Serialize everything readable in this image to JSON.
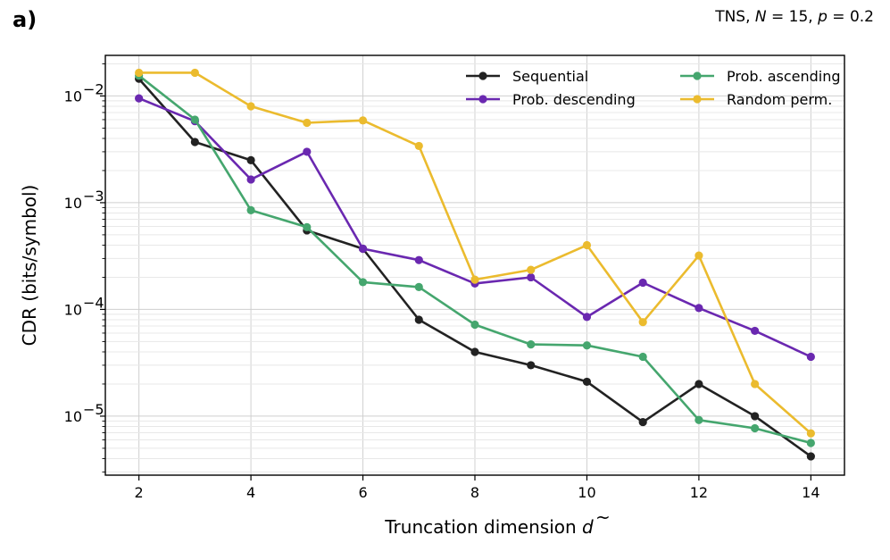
{
  "panel_label": "a)",
  "corner_annotation": {
    "pre": "TNS, ",
    "n_symbol": "N",
    "n_eq": " = 15, ",
    "p_symbol": "p",
    "p_eq": " = 0.2"
  },
  "chart_data": {
    "type": "line",
    "yscale": "log",
    "xlabel_main": "Truncation dimension ",
    "xlabel_symbol": "d",
    "xlabel_accent": "~",
    "ylabel": "CDR (bits/symbol)",
    "xlim": [
      1.4,
      14.6
    ],
    "ylim": [
      2.8e-06,
      0.024
    ],
    "x_ticks": [
      2,
      4,
      6,
      8,
      10,
      12,
      14
    ],
    "x_tick_labels": [
      "2",
      "4",
      "6",
      "8",
      "10",
      "12",
      "14"
    ],
    "y_ticks": [
      {
        "value": 0.01,
        "base": "10",
        "exp": "−2"
      },
      {
        "value": 0.001,
        "base": "10",
        "exp": "−3"
      },
      {
        "value": 0.0001,
        "base": "10",
        "exp": "−4"
      },
      {
        "value": 1e-05,
        "base": "10",
        "exp": "−5"
      }
    ],
    "grid": true,
    "legend_position": "top-right",
    "x": [
      2,
      3,
      4,
      5,
      6,
      7,
      8,
      9,
      10,
      11,
      12,
      13,
      14
    ],
    "series": [
      {
        "name": "Sequential",
        "color": "#222222",
        "values": [
          0.0145,
          0.0037,
          0.0025,
          0.00055,
          0.00037,
          8e-05,
          4e-05,
          3e-05,
          2.1e-05,
          8.8e-06,
          2e-05,
          1e-05,
          4.2e-06
        ]
      },
      {
        "name": "Prob. descending",
        "color": "#6a28b0",
        "values": [
          0.0095,
          0.0058,
          0.00165,
          0.003,
          0.00037,
          0.00029,
          0.000175,
          0.0002,
          8.5e-05,
          0.000178,
          0.000103,
          6.3e-05,
          3.6e-05
        ]
      },
      {
        "name": "Prob. ascending",
        "color": "#45a66e",
        "values": [
          0.0155,
          0.006,
          0.00085,
          0.00059,
          0.00018,
          0.000162,
          7.2e-05,
          4.7e-05,
          4.6e-05,
          3.6e-05,
          9.2e-06,
          7.7e-06,
          5.6e-06
        ]
      },
      {
        "name": "Random perm.",
        "color": "#ebbb2e",
        "values": [
          0.0165,
          0.0165,
          0.008,
          0.0056,
          0.0059,
          0.0034,
          0.00019,
          0.000235,
          0.0004,
          7.6e-05,
          0.00032,
          2e-05,
          6.9e-06
        ]
      }
    ]
  }
}
